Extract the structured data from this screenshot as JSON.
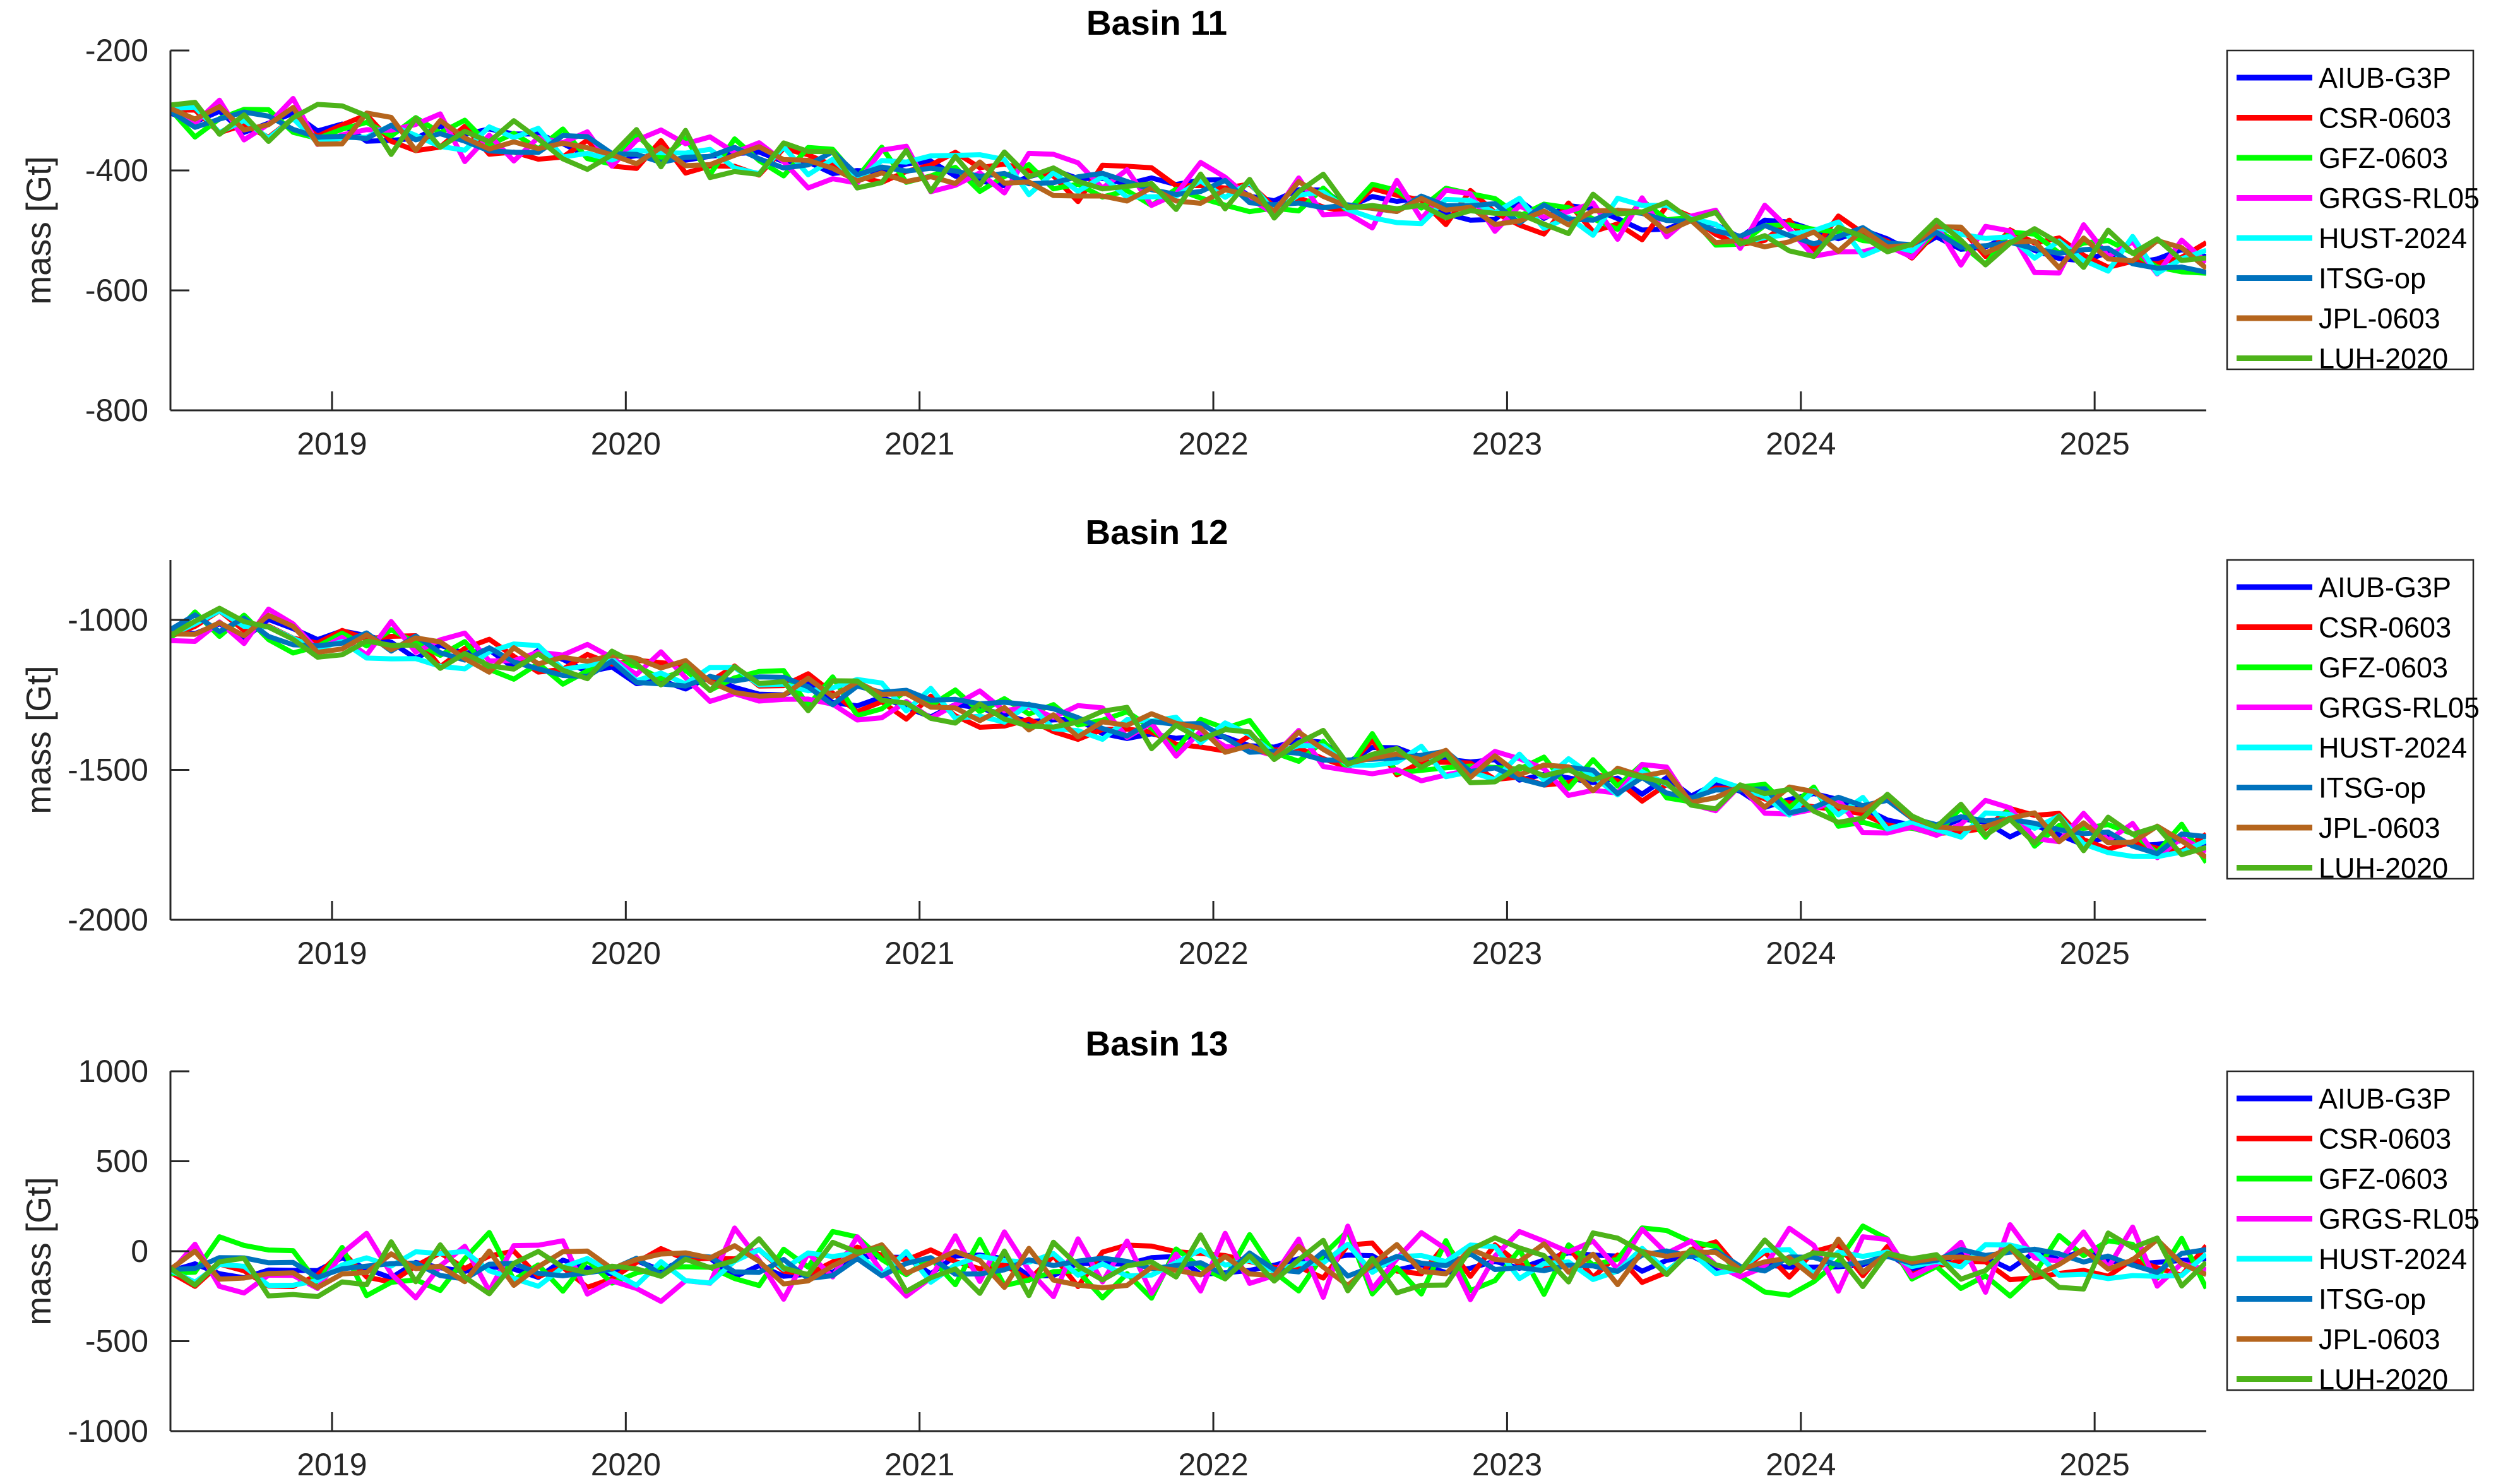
{
  "colors": {
    "AIUB-G3P": "#0000FF",
    "CSR-0603": "#FF0000",
    "GFZ-0603": "#00FF00",
    "GRGS-RL05": "#FF00FF",
    "HUST-2024": "#00FFFF",
    "ITSG-op": "#0072BD",
    "JPL-0603": "#B5651D",
    "LUH-2020": "#4DB31A"
  },
  "chart_data": [
    {
      "type": "line",
      "title": "Basin 11",
      "ylabel": "mass [Gt]",
      "xlim": [
        2018.45,
        2025.38
      ],
      "ylim": [
        -800,
        -200
      ],
      "yticks": [
        -800,
        -600,
        -400,
        -200
      ],
      "xticks": [
        2019,
        2020,
        2021,
        2022,
        2023,
        2024,
        2025
      ],
      "legend": "outside-right",
      "trend": {
        "start": -310,
        "end": -550
      },
      "series": [
        {
          "name": "AIUB-G3P",
          "noise": 20
        },
        {
          "name": "CSR-0603",
          "noise": 35
        },
        {
          "name": "GFZ-0603",
          "noise": 35
        },
        {
          "name": "GRGS-RL05",
          "noise": 45
        },
        {
          "name": "HUST-2024",
          "noise": 35
        },
        {
          "name": "ITSG-op",
          "noise": 20
        },
        {
          "name": "JPL-0603",
          "noise": 30
        },
        {
          "name": "LUH-2020",
          "noise": 40
        }
      ]
    },
    {
      "type": "line",
      "title": "Basin 12",
      "ylabel": "mass [Gt]",
      "xlim": [
        2018.45,
        2025.38
      ],
      "ylim": [
        -2000,
        -800
      ],
      "yticks": [
        -2000,
        -1500,
        -1000
      ],
      "xticks": [
        2019,
        2020,
        2021,
        2022,
        2023,
        2024,
        2025
      ],
      "legend": "outside-right",
      "trend": {
        "start": -1000,
        "end": -1760
      },
      "series": [
        {
          "name": "AIUB-G3P",
          "noise": 40
        },
        {
          "name": "CSR-0603",
          "noise": 60
        },
        {
          "name": "GFZ-0603",
          "noise": 70
        },
        {
          "name": "GRGS-RL05",
          "noise": 80
        },
        {
          "name": "HUST-2024",
          "noise": 60
        },
        {
          "name": "ITSG-op",
          "noise": 40
        },
        {
          "name": "JPL-0603",
          "noise": 60
        },
        {
          "name": "LUH-2020",
          "noise": 70
        }
      ]
    },
    {
      "type": "line",
      "title": "Basin 13",
      "ylabel": "mass [Gt]",
      "xlim": [
        2018.45,
        2025.38
      ],
      "ylim": [
        -1000,
        1000
      ],
      "yticks": [
        -1000,
        -500,
        0,
        500,
        1000
      ],
      "xticks": [
        2019,
        2020,
        2021,
        2022,
        2023,
        2024,
        2025
      ],
      "legend": "outside-right",
      "trend": {
        "start": -100,
        "end": -50
      },
      "series": [
        {
          "name": "AIUB-G3P",
          "noise": 60
        },
        {
          "name": "CSR-0603",
          "noise": 120
        },
        {
          "name": "GFZ-0603",
          "noise": 200
        },
        {
          "name": "GRGS-RL05",
          "noise": 220
        },
        {
          "name": "HUST-2024",
          "noise": 110
        },
        {
          "name": "ITSG-op",
          "noise": 70
        },
        {
          "name": "JPL-0603",
          "noise": 130
        },
        {
          "name": "LUH-2020",
          "noise": 170
        }
      ]
    }
  ]
}
